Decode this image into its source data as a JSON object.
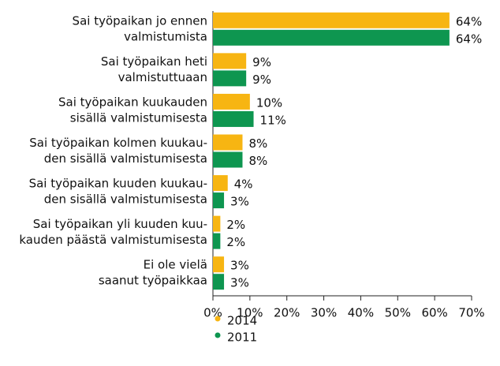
{
  "chart_data": {
    "type": "barh",
    "categories": [
      [
        "Sai työpaikan jo ennen",
        "valmistumista"
      ],
      [
        "Sai työpaikan heti",
        "valmistuttuaan"
      ],
      [
        "Sai työpaikan kuukauden",
        "sisällä valmistumisesta"
      ],
      [
        "Sai työpaikan kolmen kuukau-",
        "den sisällä valmistumisesta"
      ],
      [
        "Sai työpaikan kuuden kuukau-",
        "den sisällä valmistumisesta"
      ],
      [
        "Sai työpaikan yli kuuden kuu-",
        "kauden päästä valmistumisesta"
      ],
      [
        "Ei ole vielä",
        "saanut työpaikkaa"
      ]
    ],
    "series": [
      {
        "name": "2014",
        "color": "#f7b512",
        "values": [
          64,
          9,
          10,
          8,
          4,
          2,
          3
        ],
        "value_labels": [
          "64%",
          "9%",
          "10%",
          "8%",
          "4%",
          "2%",
          "3%"
        ]
      },
      {
        "name": "2011",
        "color": "#0e9650",
        "values": [
          64,
          9,
          11,
          8,
          3,
          2,
          3
        ],
        "value_labels": [
          "64%",
          "9%",
          "11%",
          "8%",
          "3%",
          "2%",
          "3%"
        ]
      }
    ],
    "xlim": [
      0,
      70
    ],
    "xticks": [
      {
        "value": 0,
        "label": "0%"
      },
      {
        "value": 10,
        "label": "10%"
      },
      {
        "value": 20,
        "label": "20%"
      },
      {
        "value": 30,
        "label": "30%"
      },
      {
        "value": 40,
        "label": "40%"
      },
      {
        "value": 50,
        "label": "50%"
      },
      {
        "value": 60,
        "label": "60%"
      },
      {
        "value": 70,
        "label": "70%"
      }
    ],
    "grid": false,
    "legend": "bottom"
  }
}
